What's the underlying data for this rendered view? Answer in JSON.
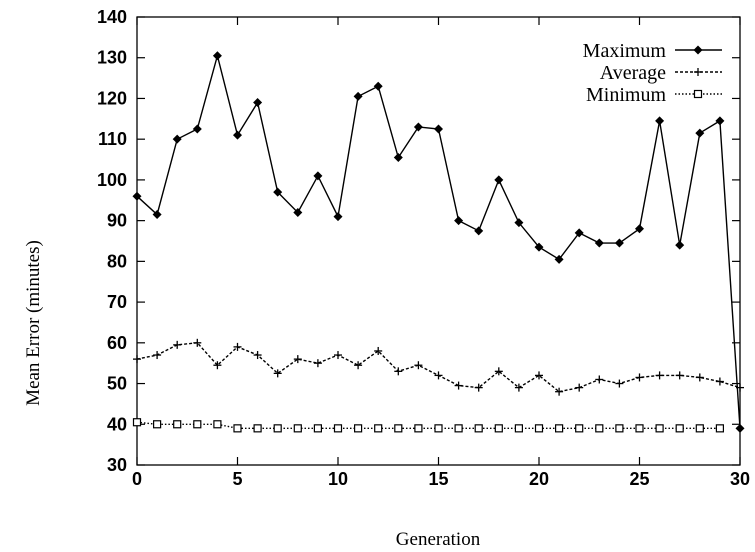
{
  "chart_data": {
    "type": "line",
    "xlabel": "Generation",
    "ylabel": "Mean Error (minutes)",
    "xlim": [
      0,
      30
    ],
    "ylim": [
      30,
      140
    ],
    "x_ticks": [
      0,
      5,
      10,
      15,
      20,
      25,
      30
    ],
    "y_ticks": [
      30,
      40,
      50,
      60,
      70,
      80,
      90,
      100,
      110,
      120,
      130,
      140
    ],
    "grid": false,
    "legend_position": "top-right",
    "x": [
      0,
      1,
      2,
      3,
      4,
      5,
      6,
      7,
      8,
      9,
      10,
      11,
      12,
      13,
      14,
      15,
      16,
      17,
      18,
      19,
      20,
      21,
      22,
      23,
      24,
      25,
      26,
      27,
      28,
      29,
      30
    ],
    "series": [
      {
        "name": "Maximum",
        "marker": "filled-diamond",
        "line_style": "solid",
        "values": [
          96,
          91.5,
          110,
          112.5,
          130.5,
          111,
          119,
          97,
          92,
          101,
          91,
          120.5,
          123,
          105.5,
          113,
          112.5,
          90,
          87.5,
          100,
          89.5,
          83.5,
          80.5,
          87,
          84.5,
          84.5,
          88,
          114.5,
          84,
          111.5,
          114.5,
          39
        ]
      },
      {
        "name": "Average",
        "marker": "plus",
        "line_style": "dashed",
        "values": [
          56,
          57,
          59.5,
          60,
          54.5,
          59,
          57,
          52.5,
          56,
          55,
          57,
          54.5,
          58,
          53,
          54.5,
          52,
          49.5,
          49,
          53,
          49,
          52,
          48,
          49,
          51,
          50,
          51.5,
          52,
          52,
          51.5,
          50.5,
          49
        ]
      },
      {
        "name": "Minimum",
        "marker": "open-square",
        "line_style": "dotted",
        "values": [
          40.5,
          40,
          40,
          40,
          40,
          39,
          39,
          39,
          39,
          39,
          39,
          39,
          39,
          39,
          39,
          39,
          39,
          39,
          39,
          39,
          39,
          39,
          39,
          39,
          39,
          39,
          39,
          39,
          39,
          39,
          null
        ]
      }
    ]
  }
}
